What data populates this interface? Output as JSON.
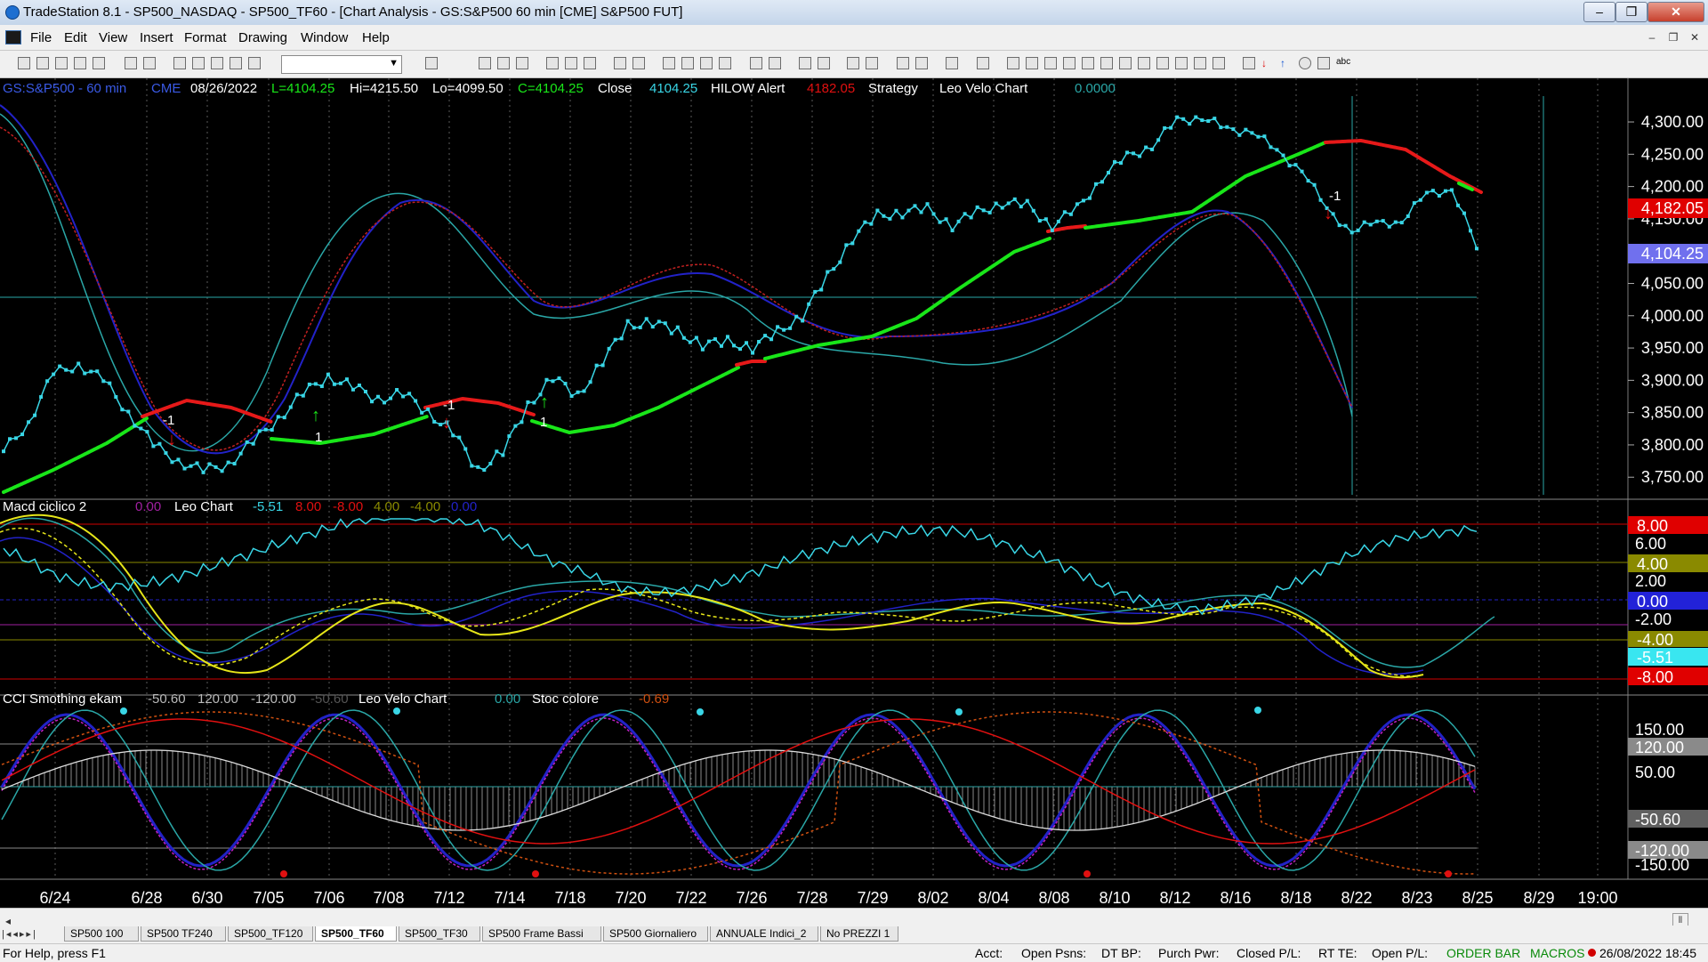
{
  "window": {
    "title": "TradeStation 8.1 - SP500_NASDAQ - SP500_TF60 - [Chart Analysis - GS:S&P500  60 min  [CME] S&P500 FUT]"
  },
  "menu": [
    "File",
    "Edit",
    "View",
    "Insert",
    "Format",
    "Drawing",
    "Window",
    "Help"
  ],
  "price_panel": {
    "symbol": "GS:S&P500 - 60 min",
    "exchange": "CME",
    "date": "08/26/2022",
    "last": "L=4104.25",
    "high": "Hi=4215.50",
    "low": "Lo=4099.50",
    "close": "C=4104.25",
    "close_label": "Close",
    "close_value": "4104.25",
    "alert_label": "HILOW Alert",
    "alert_value": "4182.05",
    "strategy_label": "Strategy",
    "velo_label": "Leo Velo Chart",
    "velo_value": "0.0000",
    "axis_ticks": [
      "4,300.00",
      "4,250.00",
      "4,200.00",
      "4,150.00",
      "4,100.00",
      "4,050.00",
      "4,000.00",
      "3,950.00",
      "3,900.00",
      "3,850.00",
      "3,800.00",
      "3,750.00"
    ],
    "tag_alert": "4,182.05",
    "tag_last": "4,104.25",
    "signal_labels": [
      "-1",
      "1",
      "-1",
      "1",
      "-1"
    ]
  },
  "macd_panel": {
    "title": "Macd ciclico 2",
    "v1": "0.00",
    "leo_label": "Leo Chart",
    "leo_value": "-5.51",
    "v2": "8.00",
    "v3": "-8.00",
    "v4": "4.00",
    "v5": "-4.00",
    "v6": "0.00",
    "axis_ticks": [
      "6.00",
      "2.00",
      "-2.00"
    ],
    "tags": [
      "8.00",
      "4.00",
      "0.00",
      "-4.00",
      "-5.51",
      "-8.00"
    ]
  },
  "cci_panel": {
    "title": "CCI Smothing ekam",
    "v1": "-50.60",
    "v2": "120.00",
    "v3": "-120.00",
    "v4": "-50.60",
    "velo_label": "Leo Velo Chart",
    "velo_value": "0.00",
    "stoc_label": "Stoc colore",
    "stoc_value": "-0.69",
    "axis_ticks": [
      "150.00",
      "50.00",
      "-150.00"
    ],
    "tags": [
      "120.00",
      "-50.60",
      "-120.00"
    ]
  },
  "dates": [
    "6/24",
    "6/28",
    "6/30",
    "7/05",
    "7/06",
    "7/08",
    "7/12",
    "7/14",
    "7/18",
    "7/20",
    "7/22",
    "7/26",
    "7/28",
    "7/29",
    "8/02",
    "8/04",
    "8/08",
    "8/10",
    "8/12",
    "8/16",
    "8/18",
    "8/22",
    "8/23",
    "8/25",
    "8/29",
    "19:00"
  ],
  "colors": {
    "price": "#39d6e6",
    "up_trend": "#19e619",
    "down_trend": "#e61919",
    "macd_main": "#39d6e6",
    "yellow": "#e6e619",
    "grid_red": "#d00000",
    "axis_bg_red": "#e00000",
    "axis_bg_blue": "#7070ee"
  },
  "chart_data": {
    "type": "line",
    "series": [
      {
        "values": [
          3790,
          3835,
          3910,
          3925,
          3900,
          3850,
          3800,
          3775,
          3760,
          3770,
          3805,
          3840,
          3880,
          3905,
          3890,
          3870,
          3880,
          3850,
          3820,
          3760,
          3790,
          3860,
          3905,
          3875,
          3930,
          3985,
          3990,
          3975,
          3955,
          3960,
          3950,
          3975,
          4000,
          4060,
          4120,
          4155,
          4160,
          4165,
          4140,
          4160,
          4175,
          4170,
          4140,
          4165,
          4215,
          4245,
          4265,
          4300,
          4310,
          4285,
          4290,
          4250,
          4230,
          4160,
          4135,
          4140,
          4150,
          4185,
          4200,
          4104
        ]
      }
    ],
    "x_labels": [
      "6/24",
      "6/28",
      "6/30",
      "7/05",
      "7/06",
      "7/08",
      "7/12",
      "7/14",
      "7/18",
      "7/20",
      "7/22",
      "7/26",
      "7/28",
      "7/29",
      "8/02",
      "8/04",
      "8/08",
      "8/10",
      "8/12",
      "8/16",
      "8/18",
      "8/22",
      "8/23",
      "8/25",
      "8/29",
      "19:00"
    ],
    "ylim": [
      3720,
      4340
    ]
  },
  "tabs": [
    "SP500 100",
    "SP500 TF240",
    "SP500_TF120",
    "SP500_TF60",
    "SP500_TF30",
    "SP500 Frame Bassi",
    "SP500 Giornaliero",
    "ANNUALE Indici_2",
    "No PREZZI 1"
  ],
  "status": {
    "help": "For Help, press F1",
    "acct": "Acct:",
    "open_psns": "Open Psns:",
    "dt_bp": "DT BP:",
    "purch_pwr": "Purch Pwr:",
    "closed_pl": "Closed P/L:",
    "rt_te": "RT TE:",
    "open_pl": "Open P/L:",
    "order_bar": "ORDER BAR",
    "macros": "MACROS",
    "datetime": "26/08/2022 18:45"
  }
}
